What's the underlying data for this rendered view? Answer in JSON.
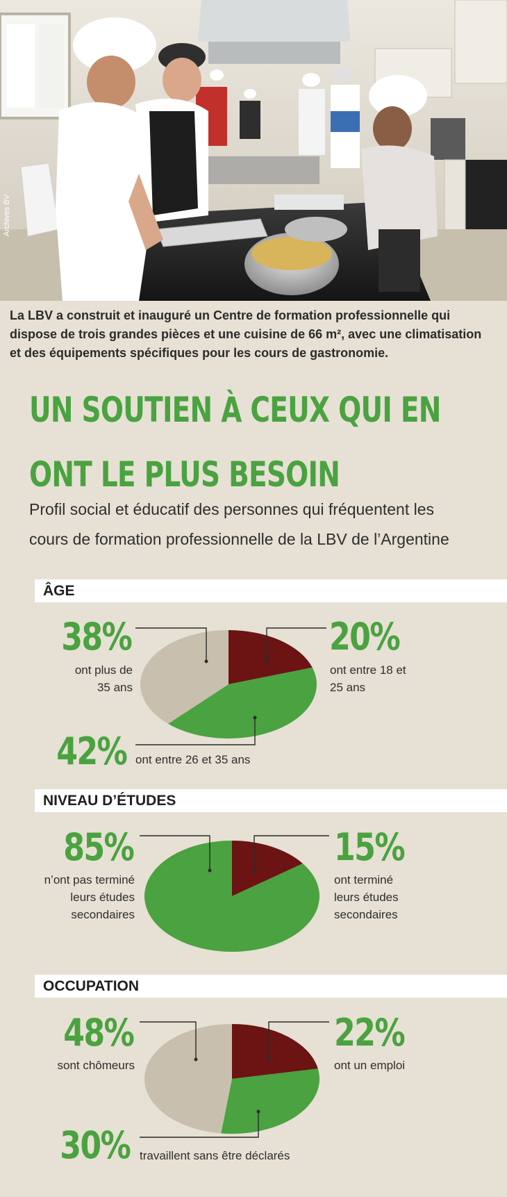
{
  "photo": {
    "credit": "Archives BV"
  },
  "caption": {
    "line1": "La LBV a construit et inauguré un Centre de formation professionnelle qui",
    "line2": "dispose de trois grandes pièces et une cuisine de 66 m², avec une climatisation",
    "line3": "et des équipements spécifiques pour les cours de gastronomie."
  },
  "title": {
    "line1": "UN SOUTIEN À CEUX QUI EN",
    "line2": "ONT LE PLUS BESOIN"
  },
  "subtitle": {
    "line1": "Profil social et éducatif des personnes qui fréquentent les",
    "line2": "cours de formation professionnelle de la LBV de l’Argentine"
  },
  "colors": {
    "green": "#4aa240",
    "maroon": "#6b1413",
    "beige": "#c9bfae",
    "title_green": "#4aa240"
  },
  "chart_data": [
    {
      "type": "pie",
      "title": "ÂGE",
      "slices": [
        {
          "value": 20,
          "label": "20%",
          "description": "ont entre 18 et 25 ans",
          "color": "#6b1413"
        },
        {
          "value": 42,
          "label": "42%",
          "description": "ont entre 26 et 35 ans",
          "color": "#4aa240"
        },
        {
          "value": 38,
          "label": "38%",
          "description": "ont plus de 35 ans",
          "color": "#c9bfae"
        }
      ]
    },
    {
      "type": "pie",
      "title": "NIVEAU D’ÉTUDES",
      "slices": [
        {
          "value": 15,
          "label": "15%",
          "description": "ont terminé leurs études secondaires",
          "color": "#6b1413"
        },
        {
          "value": 85,
          "label": "85%",
          "description": "n’ont pas terminé leurs études secondaires",
          "color": "#4aa240"
        }
      ]
    },
    {
      "type": "pie",
      "title": "OCCUPATION",
      "slices": [
        {
          "value": 22,
          "label": "22%",
          "description": "ont un emploi",
          "color": "#6b1413"
        },
        {
          "value": 30,
          "label": "30%",
          "description": "travaillent sans être déclarés",
          "color": "#4aa240"
        },
        {
          "value": 48,
          "label": "48%",
          "description": "sont chômeurs",
          "color": "#c9bfae"
        }
      ]
    }
  ],
  "descriptions": {
    "age": {
      "d38_l1": "ont plus de",
      "d38_l2": "35 ans",
      "d20_l1": "ont entre 18 et",
      "d20_l2": "25 ans",
      "d42": "ont entre 26 et 35 ans"
    },
    "etudes": {
      "d85_l1": "n’ont pas terminé",
      "d85_l2": "leurs études",
      "d85_l3": "secondaires",
      "d15_l1": "ont terminé",
      "d15_l2": "leurs études",
      "d15_l3": "secondaires"
    },
    "occupation": {
      "d48": "sont chômeurs",
      "d22": "ont un emploi",
      "d30": "travaillent sans être déclarés"
    }
  }
}
